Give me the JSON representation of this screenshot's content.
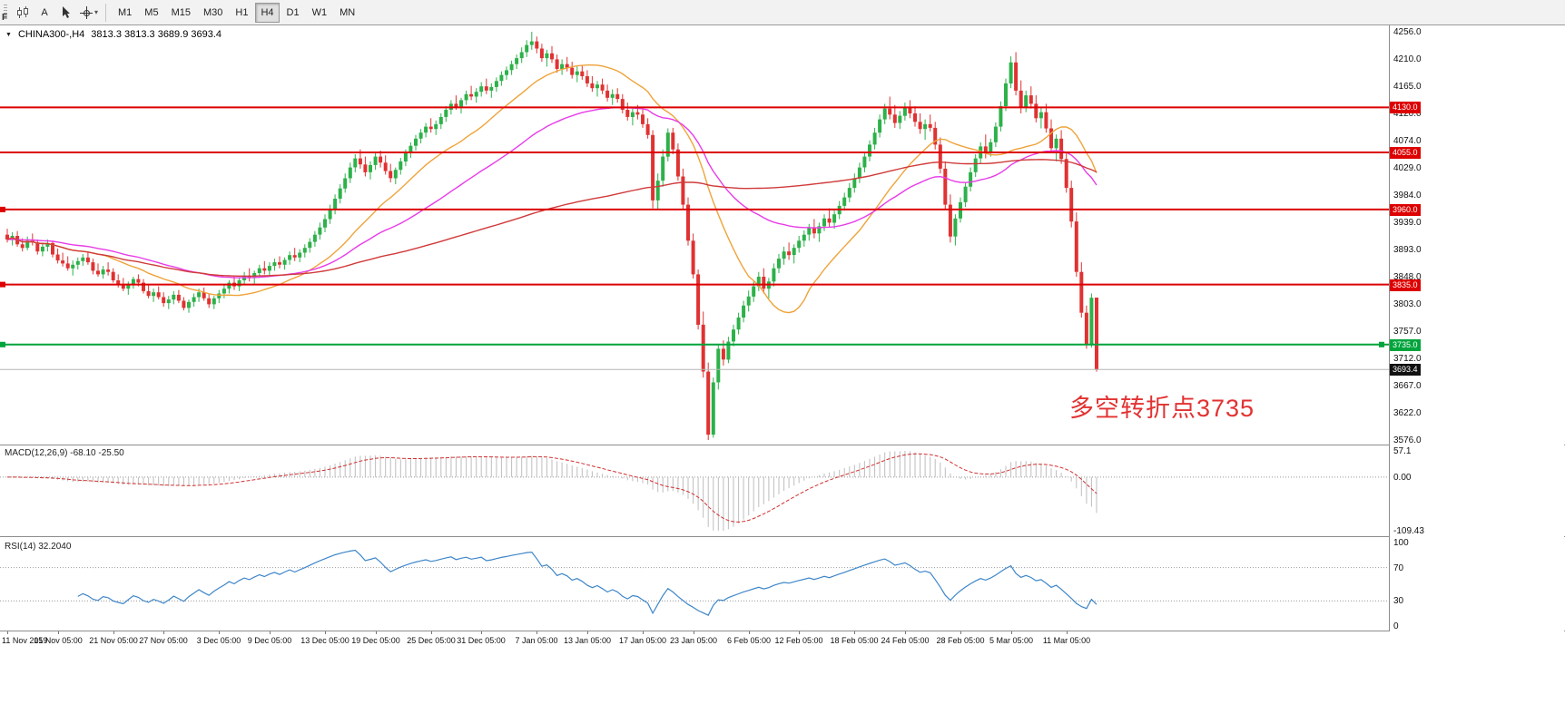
{
  "toolbar": {
    "handle_label": "F",
    "text_tool_label": "A",
    "timeframes": [
      "M1",
      "M5",
      "M15",
      "M30",
      "H1",
      "H4",
      "D1",
      "W1",
      "MN"
    ],
    "active_timeframe": "H4"
  },
  "chart": {
    "collapse_icon": "▼",
    "symbol_label": "CHINA300-,H4",
    "ohlc_label": "3813.3 3813.3 3689.9 3693.4",
    "annotation": {
      "text": "多空转折点3735",
      "color": "#e23232"
    }
  },
  "macd_panel": {
    "label": "MACD(12,26,9) -68.10 -25.50",
    "axis_labels": [
      "57.1",
      "0.00",
      "-109.43"
    ]
  },
  "rsi_panel": {
    "label": "RSI(14) 32.2040",
    "axis_labels": [
      "100",
      "70",
      "30",
      "0"
    ],
    "levels": [
      70,
      30
    ]
  },
  "chart_data": {
    "type": "candlestick",
    "symbol": "CHINA300-",
    "timeframe": "H4",
    "price_range": [
      3576.0,
      4256.0
    ],
    "price_axis_labels": [
      "4256.0",
      "4210.0",
      "4165.0",
      "4120.0",
      "4074.0",
      "4029.0",
      "3984.0",
      "3939.0",
      "3893.0",
      "3848.0",
      "3803.0",
      "3757.0",
      "3712.0",
      "3667.0",
      "3622.0",
      "3576.0"
    ],
    "time_axis_labels": [
      "11 Nov 2019",
      "15 Nov 05:00",
      "21 Nov 05:00",
      "27 Nov 05:00",
      "3 Dec 05:00",
      "9 Dec 05:00",
      "13 Dec 05:00",
      "19 Dec 05:00",
      "25 Dec 05:00",
      "31 Dec 05:00",
      "7 Jan 05:00",
      "13 Jan 05:00",
      "17 Jan 05:00",
      "23 Jan 05:00",
      "6 Feb 05:00",
      "12 Feb 05:00",
      "18 Feb 05:00",
      "24 Feb 05:00",
      "28 Feb 05:00",
      "5 Mar 05:00",
      "11 Mar 05:00"
    ],
    "time_label_candle_index": [
      0,
      10,
      21,
      31,
      42,
      52,
      63,
      73,
      84,
      94,
      105,
      115,
      126,
      136,
      147,
      157,
      168,
      178,
      189,
      199,
      210
    ],
    "hlines": [
      {
        "price": 4130.0,
        "label": "4130.0",
        "color": "#dd0000",
        "left_handle": false,
        "right_handle": false
      },
      {
        "price": 4055.0,
        "label": "4055.0",
        "color": "#dd0000",
        "left_handle": false,
        "right_handle": false
      },
      {
        "price": 3960.0,
        "label": "3960.0",
        "color": "#dd0000",
        "left_handle": true,
        "right_handle": false
      },
      {
        "price": 3835.0,
        "label": "3835.0",
        "color": "#dd0000",
        "left_handle": true,
        "right_handle": false
      },
      {
        "price": 3735.0,
        "label": "3735.0",
        "color": "#00a43c",
        "left_handle": true,
        "right_handle": true
      }
    ],
    "current_price": {
      "value": 3693.4,
      "label": "3693.4"
    },
    "up_color": "#2db14a",
    "down_color": "#e03232",
    "moving_averages": [
      {
        "name": "ma-fast",
        "type": "sma",
        "period": 20,
        "color": "#efa33a"
      },
      {
        "name": "ma-mid",
        "type": "ema",
        "period": 50,
        "color": "#e83ce8"
      },
      {
        "name": "ma-slow",
        "type": "sma",
        "period": 120,
        "color": "#d03a3a"
      }
    ],
    "macd": {
      "fast": 12,
      "slow": 26,
      "signal": 9,
      "value": -68.1,
      "signal_value": -25.5,
      "histogram_color": "#bdbdbd",
      "signal_color": "#d03030"
    },
    "rsi": {
      "period": 14,
      "value": 32.204,
      "color": "#3e86c8"
    },
    "candles": [
      [
        3918,
        3928,
        3905,
        3910
      ],
      [
        3910,
        3922,
        3900,
        3916
      ],
      [
        3916,
        3924,
        3898,
        3902
      ],
      [
        3902,
        3912,
        3890,
        3896
      ],
      [
        3896,
        3915,
        3892,
        3908
      ],
      [
        3908,
        3920,
        3900,
        3905
      ],
      [
        3905,
        3910,
        3885,
        3890
      ],
      [
        3890,
        3905,
        3882,
        3898
      ],
      [
        3898,
        3910,
        3890,
        3904
      ],
      [
        3904,
        3908,
        3880,
        3885
      ],
      [
        3885,
        3895,
        3870,
        3875
      ],
      [
        3875,
        3888,
        3865,
        3870
      ],
      [
        3870,
        3882,
        3858,
        3862
      ],
      [
        3862,
        3875,
        3850,
        3868
      ],
      [
        3868,
        3880,
        3860,
        3874
      ],
      [
        3874,
        3886,
        3866,
        3880
      ],
      [
        3880,
        3890,
        3868,
        3872
      ],
      [
        3872,
        3878,
        3852,
        3858
      ],
      [
        3858,
        3870,
        3848,
        3852
      ],
      [
        3852,
        3866,
        3845,
        3860
      ],
      [
        3860,
        3872,
        3850,
        3856
      ],
      [
        3856,
        3862,
        3838,
        3842
      ],
      [
        3842,
        3852,
        3830,
        3835
      ],
      [
        3835,
        3846,
        3824,
        3828
      ],
      [
        3828,
        3840,
        3818,
        3836
      ],
      [
        3836,
        3848,
        3828,
        3844
      ],
      [
        3844,
        3852,
        3832,
        3838
      ],
      [
        3838,
        3844,
        3820,
        3824
      ],
      [
        3824,
        3834,
        3812,
        3816
      ],
      [
        3816,
        3828,
        3806,
        3822
      ],
      [
        3822,
        3832,
        3810,
        3814
      ],
      [
        3814,
        3822,
        3798,
        3804
      ],
      [
        3804,
        3816,
        3794,
        3810
      ],
      [
        3810,
        3824,
        3802,
        3818
      ],
      [
        3818,
        3826,
        3804,
        3808
      ],
      [
        3808,
        3814,
        3792,
        3796
      ],
      [
        3796,
        3810,
        3788,
        3806
      ],
      [
        3806,
        3820,
        3798,
        3814
      ],
      [
        3814,
        3828,
        3806,
        3822
      ],
      [
        3822,
        3830,
        3808,
        3812
      ],
      [
        3812,
        3820,
        3796,
        3802
      ],
      [
        3802,
        3816,
        3794,
        3812
      ],
      [
        3812,
        3826,
        3804,
        3820
      ],
      [
        3820,
        3834,
        3812,
        3828
      ],
      [
        3828,
        3842,
        3820,
        3838
      ],
      [
        3838,
        3848,
        3826,
        3832
      ],
      [
        3832,
        3846,
        3824,
        3842
      ],
      [
        3842,
        3856,
        3834,
        3850
      ],
      [
        3850,
        3862,
        3840,
        3846
      ],
      [
        3846,
        3858,
        3836,
        3854
      ],
      [
        3854,
        3868,
        3846,
        3862
      ],
      [
        3862,
        3874,
        3852,
        3858
      ],
      [
        3858,
        3872,
        3850,
        3866
      ],
      [
        3866,
        3878,
        3858,
        3872
      ],
      [
        3872,
        3882,
        3862,
        3868
      ],
      [
        3868,
        3880,
        3860,
        3876
      ],
      [
        3876,
        3890,
        3868,
        3884
      ],
      [
        3884,
        3896,
        3874,
        3880
      ],
      [
        3880,
        3894,
        3872,
        3888
      ],
      [
        3888,
        3902,
        3880,
        3896
      ],
      [
        3896,
        3912,
        3888,
        3906
      ],
      [
        3906,
        3924,
        3898,
        3918
      ],
      [
        3918,
        3938,
        3910,
        3930
      ],
      [
        3930,
        3952,
        3922,
        3944
      ],
      [
        3944,
        3968,
        3936,
        3960
      ],
      [
        3960,
        3985,
        3952,
        3978
      ],
      [
        3978,
        4002,
        3970,
        3995
      ],
      [
        3995,
        4020,
        3988,
        4012
      ],
      [
        4012,
        4038,
        4004,
        4030
      ],
      [
        4030,
        4052,
        4022,
        4045
      ],
      [
        4045,
        4060,
        4028,
        4035
      ],
      [
        4035,
        4048,
        4015,
        4022
      ],
      [
        4022,
        4040,
        4010,
        4034
      ],
      [
        4034,
        4055,
        4026,
        4048
      ],
      [
        4048,
        4058,
        4030,
        4038
      ],
      [
        4038,
        4050,
        4018,
        4024
      ],
      [
        4024,
        4036,
        4005,
        4012
      ],
      [
        4012,
        4030,
        4002,
        4026
      ],
      [
        4026,
        4046,
        4018,
        4040
      ],
      [
        4040,
        4060,
        4032,
        4054
      ],
      [
        4054,
        4072,
        4046,
        4066
      ],
      [
        4066,
        4084,
        4058,
        4078
      ],
      [
        4078,
        4094,
        4070,
        4088
      ],
      [
        4088,
        4104,
        4080,
        4098
      ],
      [
        4098,
        4112,
        4088,
        4094
      ],
      [
        4094,
        4108,
        4084,
        4102
      ],
      [
        4102,
        4120,
        4094,
        4114
      ],
      [
        4114,
        4132,
        4106,
        4126
      ],
      [
        4126,
        4142,
        4118,
        4136
      ],
      [
        4136,
        4150,
        4126,
        4130
      ],
      [
        4130,
        4146,
        4120,
        4142
      ],
      [
        4142,
        4158,
        4134,
        4152
      ],
      [
        4152,
        4166,
        4142,
        4148
      ],
      [
        4148,
        4162,
        4138,
        4156
      ],
      [
        4156,
        4172,
        4148,
        4165
      ],
      [
        4165,
        4178,
        4152,
        4158
      ],
      [
        4158,
        4170,
        4146,
        4164
      ],
      [
        4164,
        4180,
        4156,
        4174
      ],
      [
        4174,
        4190,
        4166,
        4184
      ],
      [
        4184,
        4198,
        4176,
        4192
      ],
      [
        4192,
        4208,
        4184,
        4202
      ],
      [
        4202,
        4218,
        4194,
        4212
      ],
      [
        4212,
        4230,
        4204,
        4222
      ],
      [
        4222,
        4242,
        4214,
        4234
      ],
      [
        4234,
        4256,
        4226,
        4240
      ],
      [
        4240,
        4248,
        4220,
        4228
      ],
      [
        4228,
        4236,
        4206,
        4212
      ],
      [
        4212,
        4226,
        4198,
        4220
      ],
      [
        4220,
        4232,
        4204,
        4210
      ],
      [
        4210,
        4218,
        4188,
        4194
      ],
      [
        4194,
        4210,
        4184,
        4202
      ],
      [
        4202,
        4214,
        4190,
        4196
      ],
      [
        4196,
        4206,
        4178,
        4184
      ],
      [
        4184,
        4198,
        4172,
        4190
      ],
      [
        4190,
        4200,
        4176,
        4182
      ],
      [
        4182,
        4192,
        4164,
        4170
      ],
      [
        4170,
        4182,
        4156,
        4162
      ],
      [
        4162,
        4174,
        4148,
        4168
      ],
      [
        4168,
        4178,
        4152,
        4158
      ],
      [
        4158,
        4168,
        4140,
        4146
      ],
      [
        4146,
        4160,
        4134,
        4152
      ],
      [
        4152,
        4162,
        4138,
        4144
      ],
      [
        4144,
        4152,
        4120,
        4126
      ],
      [
        4126,
        4138,
        4108,
        4114
      ],
      [
        4114,
        4130,
        4100,
        4122
      ],
      [
        4122,
        4134,
        4110,
        4118
      ],
      [
        4118,
        4126,
        4096,
        4102
      ],
      [
        4102,
        4112,
        4078,
        4084
      ],
      [
        4084,
        4092,
        3962,
        3975
      ],
      [
        3975,
        4020,
        3960,
        4008
      ],
      [
        4008,
        4060,
        3998,
        4048
      ],
      [
        4048,
        4095,
        4040,
        4088
      ],
      [
        4088,
        4096,
        4052,
        4060
      ],
      [
        4060,
        4070,
        4008,
        4015
      ],
      [
        4015,
        4028,
        3960,
        3968
      ],
      [
        3968,
        3980,
        3900,
        3908
      ],
      [
        3908,
        3920,
        3845,
        3852
      ],
      [
        3852,
        3860,
        3760,
        3768
      ],
      [
        3768,
        3790,
        3680,
        3690
      ],
      [
        3690,
        3705,
        3576,
        3585
      ],
      [
        3585,
        3680,
        3580,
        3672
      ],
      [
        3672,
        3736,
        3660,
        3728
      ],
      [
        3728,
        3742,
        3700,
        3710
      ],
      [
        3710,
        3748,
        3704,
        3740
      ],
      [
        3740,
        3768,
        3732,
        3760
      ],
      [
        3760,
        3788,
        3752,
        3780
      ],
      [
        3780,
        3808,
        3772,
        3800
      ],
      [
        3800,
        3825,
        3790,
        3815
      ],
      [
        3815,
        3840,
        3806,
        3832
      ],
      [
        3832,
        3856,
        3824,
        3848
      ],
      [
        3848,
        3862,
        3820,
        3828
      ],
      [
        3828,
        3846,
        3812,
        3840
      ],
      [
        3840,
        3870,
        3832,
        3862
      ],
      [
        3862,
        3886,
        3854,
        3878
      ],
      [
        3878,
        3898,
        3868,
        3890
      ],
      [
        3890,
        3905,
        3876,
        3884
      ],
      [
        3884,
        3902,
        3870,
        3896
      ],
      [
        3896,
        3916,
        3888,
        3908
      ],
      [
        3908,
        3925,
        3898,
        3918
      ],
      [
        3918,
        3936,
        3908,
        3930
      ],
      [
        3930,
        3944,
        3912,
        3920
      ],
      [
        3920,
        3938,
        3906,
        3932
      ],
      [
        3932,
        3952,
        3924,
        3945
      ],
      [
        3945,
        3962,
        3930,
        3938
      ],
      [
        3938,
        3958,
        3928,
        3952
      ],
      [
        3952,
        3974,
        3944,
        3966
      ],
      [
        3966,
        3988,
        3958,
        3980
      ],
      [
        3980,
        4004,
        3972,
        3996
      ],
      [
        3996,
        4020,
        3988,
        4012
      ],
      [
        4012,
        4038,
        4004,
        4030
      ],
      [
        4030,
        4056,
        4022,
        4048
      ],
      [
        4048,
        4075,
        4040,
        4068
      ],
      [
        4068,
        4096,
        4060,
        4088
      ],
      [
        4088,
        4118,
        4080,
        4110
      ],
      [
        4110,
        4136,
        4102,
        4128
      ],
      [
        4128,
        4148,
        4110,
        4118
      ],
      [
        4118,
        4134,
        4096,
        4104
      ],
      [
        4104,
        4124,
        4094,
        4116
      ],
      [
        4116,
        4138,
        4108,
        4130
      ],
      [
        4130,
        4142,
        4112,
        4120
      ],
      [
        4120,
        4132,
        4098,
        4106
      ],
      [
        4106,
        4120,
        4086,
        4094
      ],
      [
        4094,
        4110,
        4076,
        4102
      ],
      [
        4102,
        4118,
        4090,
        4096
      ],
      [
        4096,
        4106,
        4060,
        4068
      ],
      [
        4068,
        4080,
        4020,
        4028
      ],
      [
        4028,
        4040,
        3960,
        3968
      ],
      [
        3968,
        3985,
        3905,
        3915
      ],
      [
        3915,
        3952,
        3900,
        3945
      ],
      [
        3945,
        3980,
        3938,
        3972
      ],
      [
        3972,
        4005,
        3964,
        3998
      ],
      [
        3998,
        4030,
        3990,
        4022
      ],
      [
        4022,
        4052,
        4014,
        4045
      ],
      [
        4045,
        4072,
        4036,
        4065
      ],
      [
        4065,
        4085,
        4045,
        4055
      ],
      [
        4055,
        4078,
        4048,
        4072
      ],
      [
        4072,
        4105,
        4064,
        4098
      ],
      [
        4098,
        4140,
        4090,
        4132
      ],
      [
        4132,
        4178,
        4124,
        4170
      ],
      [
        4170,
        4215,
        4162,
        4205
      ],
      [
        4205,
        4222,
        4150,
        4158
      ],
      [
        4158,
        4175,
        4120,
        4130
      ],
      [
        4130,
        4158,
        4122,
        4150
      ],
      [
        4150,
        4165,
        4128,
        4136
      ],
      [
        4136,
        4150,
        4105,
        4112
      ],
      [
        4112,
        4130,
        4095,
        4122
      ],
      [
        4122,
        4136,
        4088,
        4095
      ],
      [
        4095,
        4110,
        4055,
        4062
      ],
      [
        4062,
        4085,
        4040,
        4078
      ],
      [
        4078,
        4092,
        4036,
        4044
      ],
      [
        4044,
        4056,
        3988,
        3996
      ],
      [
        3996,
        4008,
        3930,
        3940
      ],
      [
        3940,
        3955,
        3848,
        3856
      ],
      [
        3856,
        3872,
        3780,
        3788
      ],
      [
        3788,
        3800,
        3728,
        3736
      ],
      [
        3736,
        3820,
        3730,
        3813
      ],
      [
        3813.3,
        3813.3,
        3689.9,
        3693.4
      ]
    ]
  }
}
